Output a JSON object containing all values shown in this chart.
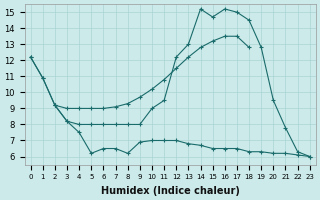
{
  "xlabel": "Humidex (Indice chaleur)",
  "bg_color": "#cceaea",
  "grid_color": "#aad4d4",
  "line_color": "#1a6b6b",
  "xlim": [
    -0.5,
    23.5
  ],
  "ylim": [
    5.5,
    15.5
  ],
  "yticks": [
    6,
    7,
    8,
    9,
    10,
    11,
    12,
    13,
    14,
    15
  ],
  "xticks": [
    0,
    1,
    2,
    3,
    4,
    5,
    6,
    7,
    8,
    9,
    10,
    11,
    12,
    13,
    14,
    15,
    16,
    17,
    18,
    19,
    20,
    21,
    22,
    23
  ],
  "curve1_x": [
    0,
    1,
    2,
    3,
    4,
    5,
    6,
    7,
    8,
    9,
    10,
    11,
    12,
    13,
    14,
    15,
    16,
    17,
    18
  ],
  "curve1_y": [
    12.2,
    10.9,
    9.2,
    9.0,
    9.0,
    9.0,
    9.0,
    9.1,
    9.3,
    9.7,
    10.2,
    10.8,
    11.5,
    12.2,
    12.8,
    13.2,
    13.5,
    13.5,
    12.8
  ],
  "curve2_x": [
    0,
    1,
    2,
    3,
    4,
    5,
    6,
    7,
    8,
    9,
    10,
    11,
    12,
    13,
    14,
    15,
    16,
    17,
    18,
    19,
    20,
    21,
    22,
    23
  ],
  "curve2_y": [
    12.2,
    10.9,
    9.2,
    8.2,
    8.0,
    8.0,
    8.0,
    8.0,
    8.0,
    8.0,
    9.0,
    9.5,
    12.2,
    13.0,
    15.2,
    14.7,
    15.2,
    15.0,
    14.5,
    12.8,
    9.5,
    7.8,
    6.3,
    6.0
  ],
  "curve3_x": [
    2,
    3,
    4,
    5,
    6,
    7,
    8,
    9,
    10,
    11,
    12,
    13,
    14,
    15,
    16,
    17,
    18,
    19,
    20,
    21,
    22,
    23
  ],
  "curve3_y": [
    9.2,
    8.2,
    7.5,
    6.2,
    6.5,
    6.5,
    6.2,
    6.9,
    7.0,
    7.0,
    7.0,
    6.8,
    6.7,
    6.5,
    6.5,
    6.5,
    6.3,
    6.3,
    6.2,
    6.2,
    6.1,
    6.0
  ]
}
